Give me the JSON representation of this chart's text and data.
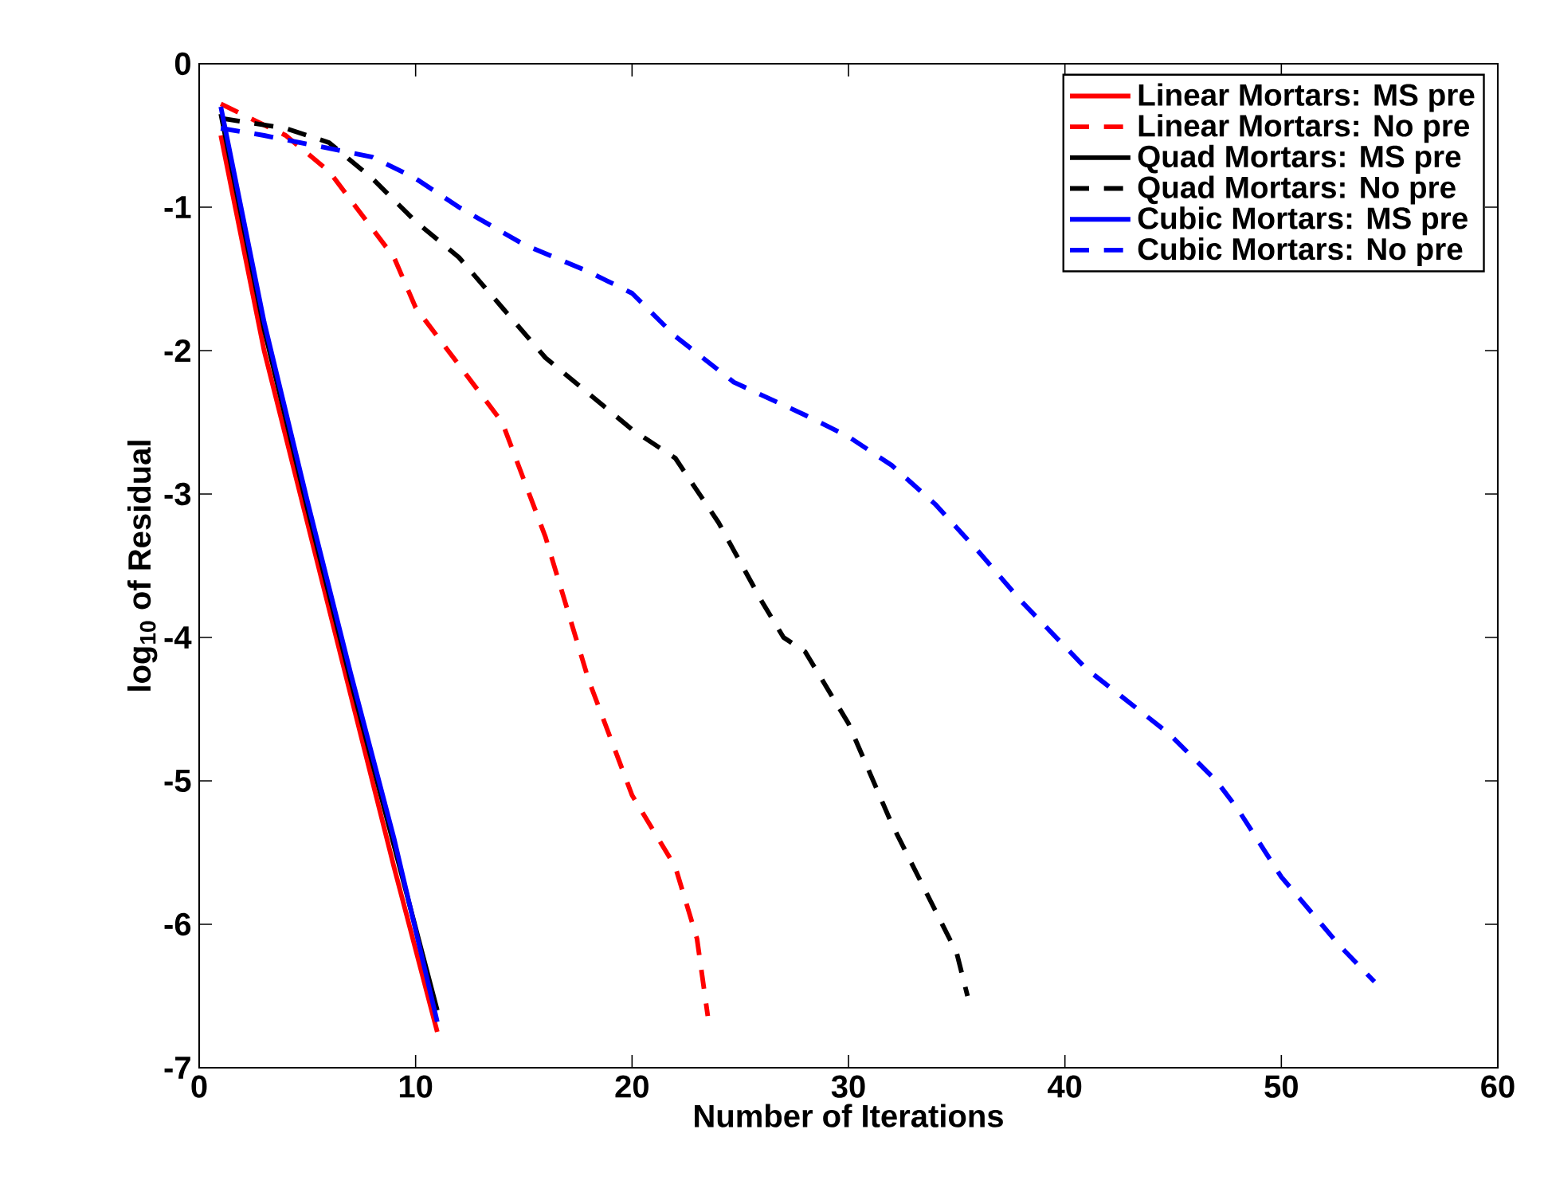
{
  "chart_data": {
    "type": "line",
    "xlabel": "Number of Iterations",
    "ylabel": "log$_{10}$ of Residual",
    "xlim": [
      0,
      60
    ],
    "ylim": [
      -7,
      0
    ],
    "xticks": [
      0,
      10,
      20,
      30,
      40,
      50,
      60
    ],
    "yticks": [
      -7,
      -6,
      -5,
      -4,
      -3,
      -2,
      -1,
      0
    ],
    "grid": false,
    "legend": "top right",
    "marker": "none",
    "series": [
      {
        "name": "Linear Mortars: MS pre",
        "color": "#ff0000",
        "line_style": "solid",
        "x": [
          1,
          3,
          5,
          7,
          9,
          11
        ],
        "values": [
          -0.5,
          -2.0,
          -3.2,
          -4.4,
          -5.6,
          -6.75
        ]
      },
      {
        "name": "Linear Mortars: No pre",
        "color": "#ff0000",
        "line_style": "dashed",
        "x": [
          1,
          4,
          6,
          8,
          9,
          10,
          12,
          14,
          16,
          18,
          20,
          22,
          23,
          23.5
        ],
        "values": [
          -0.28,
          -0.5,
          -0.75,
          -1.15,
          -1.35,
          -1.7,
          -2.1,
          -2.5,
          -3.3,
          -4.3,
          -5.1,
          -5.6,
          -6.1,
          -6.64
        ]
      },
      {
        "name": "Quad Mortars: MS pre",
        "color": "#000000",
        "line_style": "solid",
        "x": [
          1,
          3,
          5,
          7,
          9,
          11
        ],
        "values": [
          -0.35,
          -1.85,
          -3.1,
          -4.3,
          -5.45,
          -6.6
        ]
      },
      {
        "name": "Quad Mortars: No pre",
        "color": "#000000",
        "line_style": "dashed",
        "x": [
          1,
          4,
          6,
          8,
          10,
          12,
          14,
          16,
          18,
          20,
          22,
          24,
          26,
          27,
          28,
          30,
          32,
          34,
          35,
          35.5
        ],
        "values": [
          -0.38,
          -0.45,
          -0.55,
          -0.8,
          -1.1,
          -1.35,
          -1.7,
          -2.05,
          -2.3,
          -2.55,
          -2.75,
          -3.2,
          -3.75,
          -4.0,
          -4.1,
          -4.6,
          -5.3,
          -5.9,
          -6.2,
          -6.5
        ]
      },
      {
        "name": "Cubic Mortars: MS pre",
        "color": "#0000ff",
        "line_style": "solid",
        "x": [
          1,
          3,
          5,
          7,
          9,
          11
        ],
        "values": [
          -0.3,
          -1.8,
          -3.05,
          -4.25,
          -5.4,
          -6.68
        ]
      },
      {
        "name": "Cubic Mortars: No pre",
        "color": "#0000ff",
        "line_style": "dashed",
        "x": [
          1,
          3,
          6,
          8,
          10,
          12,
          15,
          18,
          20,
          22,
          24.7,
          28,
          30,
          32,
          34,
          36,
          38,
          41,
          44.8,
          47,
          48,
          50,
          52.7,
          54.3
        ],
        "values": [
          -0.45,
          -0.5,
          -0.59,
          -0.65,
          -0.8,
          -1.0,
          -1.26,
          -1.45,
          -1.6,
          -1.9,
          -2.22,
          -2.45,
          -2.6,
          -2.8,
          -3.07,
          -3.4,
          -3.75,
          -4.22,
          -4.67,
          -5.0,
          -5.2,
          -5.67,
          -6.15,
          -6.4
        ]
      }
    ]
  }
}
